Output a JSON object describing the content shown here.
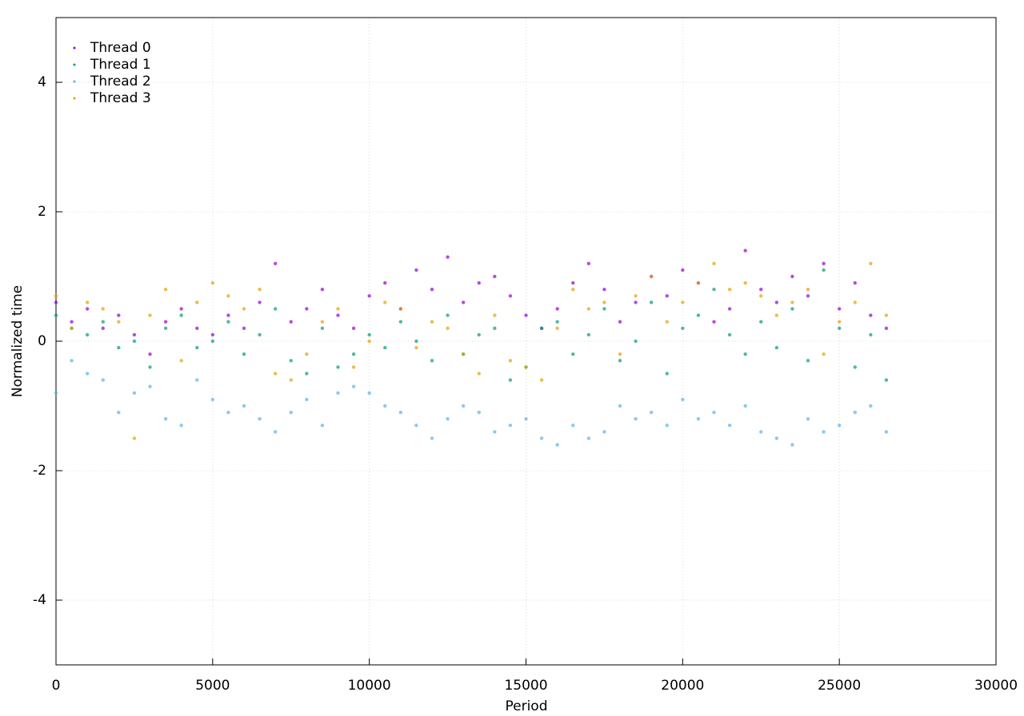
{
  "chart_data": {
    "type": "scatter",
    "xlabel": "Period",
    "ylabel": "Normalized time",
    "x": [
      0,
      500,
      1000,
      1500,
      2000,
      2500,
      3000,
      3500,
      4000,
      4500,
      5000,
      5500,
      6000,
      6500,
      7000,
      7500,
      8000,
      8500,
      9000,
      9500,
      10000,
      10500,
      11000,
      11500,
      12000,
      12500,
      13000,
      13500,
      14000,
      14500,
      15000,
      15500,
      16000,
      16500,
      17000,
      17500,
      18000,
      18500,
      19000,
      19500,
      20000,
      20500,
      21000,
      21500,
      22000,
      22500,
      23000,
      23500,
      24000,
      24500,
      25000,
      25500,
      26000,
      26500
    ],
    "series": [
      {
        "name": "Thread 0",
        "color": "#9400d3",
        "values": [
          0.6,
          0.3,
          0.5,
          0.2,
          0.4,
          0.1,
          -0.2,
          0.3,
          0.5,
          0.2,
          0.1,
          0.4,
          0.2,
          0.6,
          1.2,
          0.3,
          0.5,
          0.8,
          0.4,
          0.2,
          0.7,
          0.9,
          0.5,
          1.1,
          0.8,
          1.3,
          0.6,
          0.9,
          1.0,
          0.7,
          0.4,
          0.2,
          0.5,
          0.9,
          1.2,
          0.8,
          0.3,
          0.6,
          1.0,
          0.7,
          1.1,
          0.9,
          0.3,
          0.5,
          1.4,
          0.8,
          0.6,
          1.0,
          0.7,
          1.2,
          0.5,
          0.9,
          0.4,
          0.2
        ]
      },
      {
        "name": "Thread 1",
        "color": "#009e73",
        "values": [
          0.4,
          0.2,
          0.1,
          0.3,
          -0.1,
          0.0,
          -0.4,
          0.2,
          0.4,
          -0.1,
          0.0,
          0.3,
          -0.2,
          0.1,
          0.5,
          -0.3,
          -0.5,
          0.2,
          -0.4,
          -0.2,
          0.1,
          -0.1,
          0.3,
          0.0,
          -0.3,
          0.4,
          -0.2,
          0.1,
          0.2,
          -0.6,
          -0.4,
          0.2,
          0.3,
          -0.2,
          0.1,
          0.5,
          -0.3,
          0.0,
          0.6,
          -0.5,
          0.2,
          0.4,
          0.8,
          0.1,
          -0.2,
          0.3,
          -0.1,
          0.5,
          -0.3,
          1.1,
          0.2,
          -0.4,
          0.1,
          -0.6
        ]
      },
      {
        "name": "Thread 2",
        "color": "#56b4e9",
        "values": [
          -0.8,
          -0.3,
          -0.5,
          -0.6,
          -1.1,
          -0.8,
          -0.7,
          -1.2,
          -1.3,
          -0.6,
          -0.9,
          -1.1,
          -1.0,
          -1.2,
          -1.4,
          -1.1,
          -0.9,
          -1.3,
          -0.8,
          -0.7,
          -0.8,
          -1.0,
          -1.1,
          -1.3,
          -1.5,
          -1.2,
          -1.0,
          -1.1,
          -1.4,
          -1.3,
          -1.2,
          -1.5,
          -1.6,
          -1.3,
          -1.5,
          -1.4,
          -1.0,
          -1.2,
          -1.1,
          -1.3,
          -0.9,
          -1.2,
          -1.1,
          -1.3,
          -1.0,
          -1.4,
          -1.5,
          -1.6,
          -1.2,
          -1.4,
          -1.3,
          -1.1,
          -1.0,
          -1.4
        ]
      },
      {
        "name": "Thread 3",
        "color": "#e69f00",
        "values": [
          0.7,
          0.2,
          0.6,
          0.5,
          0.3,
          -1.5,
          0.4,
          0.8,
          -0.3,
          0.6,
          0.9,
          0.7,
          0.5,
          0.8,
          -0.5,
          -0.6,
          -0.2,
          0.3,
          0.5,
          -0.4,
          0.0,
          0.6,
          0.5,
          -0.1,
          0.3,
          0.2,
          -0.2,
          -0.5,
          0.4,
          -0.3,
          -0.4,
          -0.6,
          0.2,
          0.8,
          0.5,
          0.6,
          -0.2,
          0.7,
          1.0,
          0.3,
          0.6,
          0.9,
          1.2,
          0.8,
          0.9,
          0.7,
          0.4,
          0.6,
          0.8,
          -0.2,
          0.3,
          0.6,
          1.2,
          0.4
        ]
      }
    ],
    "xlim": [
      0,
      30000
    ],
    "xticks": [
      0,
      5000,
      10000,
      15000,
      20000,
      25000,
      30000
    ],
    "ylim": [
      -5,
      5
    ],
    "yticks": [
      -4,
      -2,
      0,
      2,
      4
    ],
    "grid": true,
    "legend": "top-left"
  }
}
